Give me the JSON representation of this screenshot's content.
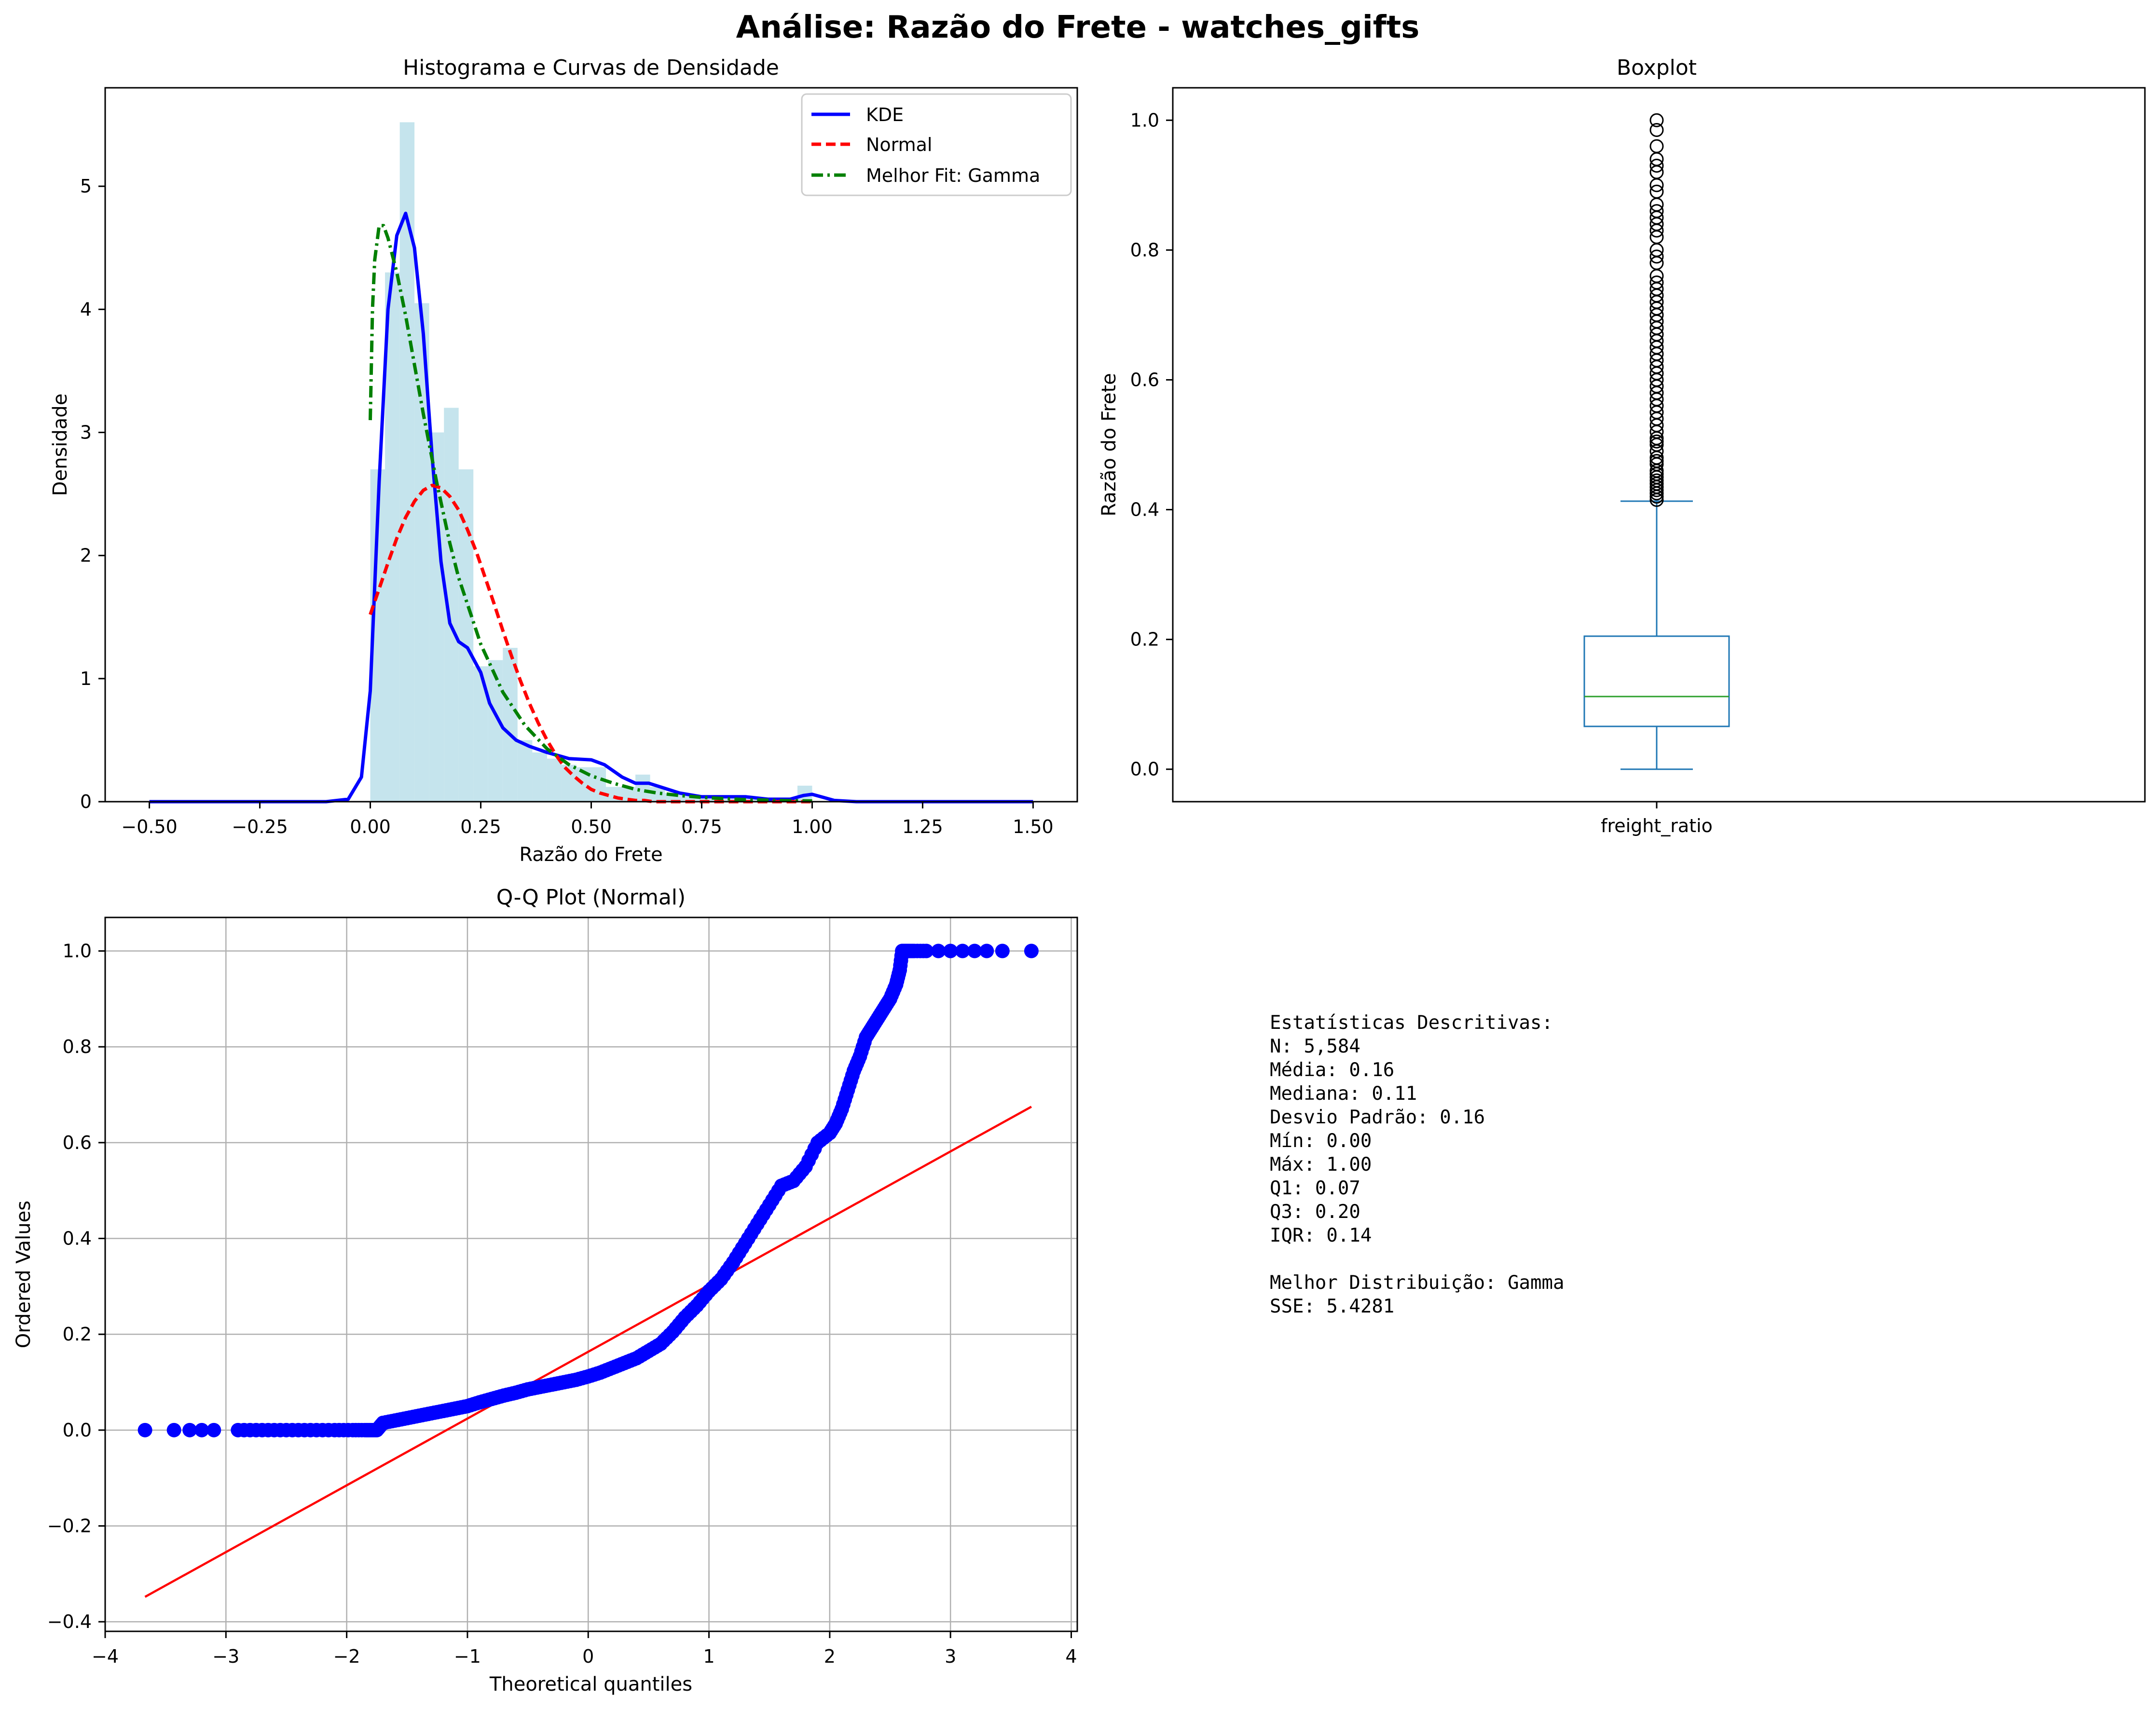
{
  "figure": {
    "title": "Análise: Razão do Frete - watches_gifts"
  },
  "colors": {
    "hist": "#add8e6",
    "kde": "#0000ff",
    "normal": "#ff0000",
    "gamma": "#008000",
    "box": "#1f77b4",
    "median": "#2ca02c",
    "qq_points": "#0000ff",
    "qq_line": "#ff0000",
    "grid": "#b0b0b0"
  },
  "chart_data": [
    {
      "id": "histogram",
      "type": "area",
      "title": "Histograma e Curvas de Densidade",
      "xlabel": "Razão do Frete",
      "ylabel": "Densidade",
      "xlim": [
        -0.6,
        1.6
      ],
      "ylim": [
        0,
        5.8
      ],
      "xticks": [
        -0.5,
        -0.25,
        0.0,
        0.25,
        0.5,
        0.75,
        1.0,
        1.25,
        1.5
      ],
      "xtick_labels": [
        "−0.50",
        "−0.25",
        "0.00",
        "0.25",
        "0.50",
        "0.75",
        "1.00",
        "1.25",
        "1.50"
      ],
      "yticks": [
        0,
        1,
        2,
        3,
        4,
        5
      ],
      "ytick_labels": [
        "0",
        "1",
        "2",
        "3",
        "4",
        "5"
      ],
      "legend_position": "upper right",
      "histogram": {
        "bin_edges": [
          0.0,
          0.0333,
          0.0667,
          0.1,
          0.1333,
          0.1667,
          0.2,
          0.2333,
          0.2667,
          0.3,
          0.3333,
          0.3667,
          0.4,
          0.4333,
          0.4667,
          0.5,
          0.5333,
          0.5667,
          0.6,
          0.6333,
          0.6667,
          0.7,
          0.7333,
          0.7667,
          0.8,
          0.8333,
          0.8667,
          0.9,
          0.9333,
          0.9667,
          1.0
        ],
        "densities": [
          2.7,
          4.3,
          5.52,
          4.05,
          3.0,
          3.2,
          2.7,
          1.1,
          1.15,
          1.25,
          0.5,
          0.4,
          0.35,
          0.3,
          0.28,
          0.28,
          0.12,
          0.12,
          0.22,
          0.12,
          0.07,
          0.06,
          0.05,
          0.04,
          0.04,
          0.03,
          0.02,
          0.02,
          0.03,
          0.13
        ]
      },
      "series": [
        {
          "name": "KDE",
          "style": "solid",
          "x": [
            -0.5,
            -0.1,
            -0.05,
            -0.02,
            0.0,
            0.02,
            0.04,
            0.06,
            0.08,
            0.1,
            0.12,
            0.14,
            0.16,
            0.18,
            0.2,
            0.22,
            0.25,
            0.27,
            0.3,
            0.33,
            0.36,
            0.4,
            0.45,
            0.5,
            0.53,
            0.57,
            0.6,
            0.63,
            0.7,
            0.75,
            0.8,
            0.85,
            0.9,
            0.95,
            0.98,
            1.0,
            1.02,
            1.05,
            1.1,
            1.5
          ],
          "y": [
            0.0,
            0.0,
            0.02,
            0.2,
            0.9,
            2.6,
            4.0,
            4.6,
            4.78,
            4.5,
            3.8,
            2.8,
            1.95,
            1.45,
            1.3,
            1.25,
            1.05,
            0.8,
            0.6,
            0.5,
            0.45,
            0.4,
            0.35,
            0.34,
            0.3,
            0.2,
            0.15,
            0.15,
            0.07,
            0.04,
            0.04,
            0.04,
            0.02,
            0.02,
            0.05,
            0.06,
            0.04,
            0.01,
            0.0,
            0.0
          ]
        },
        {
          "name": "Normal",
          "style": "dashed",
          "x": [
            0.0,
            0.02,
            0.04,
            0.06,
            0.08,
            0.1,
            0.12,
            0.14,
            0.16,
            0.18,
            0.2,
            0.22,
            0.24,
            0.26,
            0.28,
            0.3,
            0.32,
            0.34,
            0.36,
            0.38,
            0.4,
            0.42,
            0.44,
            0.46,
            0.48,
            0.5,
            0.52,
            0.54,
            0.56,
            0.58,
            0.6,
            0.62,
            0.64,
            0.66,
            0.68,
            0.7,
            0.72,
            0.74,
            0.76,
            0.78,
            0.8,
            0.85,
            0.9,
            0.95,
            1.0
          ],
          "y": [
            1.52,
            1.73,
            1.94,
            2.14,
            2.31,
            2.44,
            2.53,
            2.57,
            2.55,
            2.48,
            2.37,
            2.21,
            2.03,
            1.82,
            1.61,
            1.39,
            1.18,
            0.98,
            0.8,
            0.64,
            0.5,
            0.38,
            0.28,
            0.21,
            0.15,
            0.1,
            0.07,
            0.05,
            0.03,
            0.02,
            0.01,
            0.01,
            0.0,
            0.0,
            0.0,
            0.0,
            0.0,
            0.0,
            0.0,
            0.0,
            0.0,
            0.0,
            0.0,
            0.0,
            0.0
          ]
        },
        {
          "name": "Melhor Fit: Gamma",
          "style": "dashdot",
          "x": [
            0.0,
            0.005,
            0.01,
            0.02,
            0.03,
            0.04,
            0.06,
            0.08,
            0.1,
            0.12,
            0.15,
            0.18,
            0.2,
            0.25,
            0.3,
            0.35,
            0.4,
            0.45,
            0.5,
            0.55,
            0.6,
            0.65,
            0.7,
            0.75,
            0.8,
            0.85,
            0.9,
            0.95,
            1.0
          ],
          "y": [
            3.1,
            4.0,
            4.4,
            4.68,
            4.68,
            4.58,
            4.3,
            3.95,
            3.55,
            3.15,
            2.6,
            2.1,
            1.82,
            1.28,
            0.89,
            0.62,
            0.43,
            0.3,
            0.21,
            0.15,
            0.1,
            0.07,
            0.05,
            0.035,
            0.025,
            0.017,
            0.012,
            0.008,
            0.006
          ]
        }
      ]
    },
    {
      "id": "boxplot",
      "type": "box",
      "title": "Boxplot",
      "xlabel": "",
      "ylabel": "Razão do Frete",
      "category": "freight_ratio",
      "ylim": [
        -0.05,
        1.05
      ],
      "yticks": [
        0.0,
        0.2,
        0.4,
        0.6,
        0.8,
        1.0
      ],
      "ytick_labels": [
        "0.0",
        "0.2",
        "0.4",
        "0.6",
        "0.8",
        "1.0"
      ],
      "whisker_low": 0.0,
      "q1": 0.066,
      "median": 0.112,
      "q3": 0.205,
      "whisker_high": 0.413,
      "outliers": [
        0.415,
        0.42,
        0.425,
        0.43,
        0.435,
        0.44,
        0.445,
        0.45,
        0.455,
        0.46,
        0.47,
        0.475,
        0.48,
        0.49,
        0.5,
        0.505,
        0.51,
        0.52,
        0.53,
        0.54,
        0.55,
        0.56,
        0.57,
        0.58,
        0.59,
        0.6,
        0.61,
        0.62,
        0.63,
        0.64,
        0.65,
        0.66,
        0.67,
        0.68,
        0.69,
        0.7,
        0.71,
        0.72,
        0.73,
        0.74,
        0.75,
        0.76,
        0.78,
        0.79,
        0.8,
        0.82,
        0.83,
        0.84,
        0.85,
        0.86,
        0.87,
        0.89,
        0.9,
        0.92,
        0.93,
        0.94,
        0.96,
        0.985,
        1.0
      ]
    },
    {
      "id": "qqplot",
      "type": "scatter",
      "title": "Q-Q Plot (Normal)",
      "xlabel": "Theoretical quantiles",
      "ylabel": "Ordered Values",
      "xlim": [
        -4.0,
        4.05
      ],
      "ylim": [
        -0.42,
        1.07
      ],
      "xticks": [
        -4,
        -3,
        -2,
        -1,
        0,
        1,
        2,
        3,
        4
      ],
      "xtick_labels": [
        "−4",
        "−3",
        "−2",
        "−1",
        "0",
        "1",
        "2",
        "3",
        "4"
      ],
      "yticks": [
        -0.4,
        -0.2,
        0.0,
        0.2,
        0.4,
        0.6,
        0.8,
        1.0
      ],
      "ytick_labels": [
        "−0.4",
        "−0.2",
        "0.0",
        "0.2",
        "0.4",
        "0.6",
        "0.8",
        "1.0"
      ],
      "grid": true,
      "points": {
        "x": [
          -3.67,
          -3.43,
          -3.3,
          -3.2,
          -3.1,
          -2.9,
          -2.7,
          -2.5,
          -2.3,
          -2.1,
          -1.95,
          -1.85,
          -1.8,
          -1.75,
          -1.7,
          -1.6,
          -1.5,
          -1.4,
          -1.3,
          -1.2,
          -1.1,
          -1.0,
          -0.9,
          -0.8,
          -0.7,
          -0.6,
          -0.5,
          -0.4,
          -0.3,
          -0.2,
          -0.1,
          0.0,
          0.1,
          0.2,
          0.3,
          0.4,
          0.5,
          0.6,
          0.7,
          0.8,
          0.9,
          1.0,
          1.1,
          1.2,
          1.3,
          1.4,
          1.5,
          1.6,
          1.7,
          1.8,
          1.9,
          2.0,
          2.05,
          2.1,
          2.15,
          2.2,
          2.25,
          2.3,
          2.35,
          2.4,
          2.45,
          2.5,
          2.55,
          2.58,
          2.6,
          2.62,
          2.65,
          2.7,
          2.8,
          2.9,
          3.0,
          3.1,
          3.2,
          3.3,
          3.43,
          3.67
        ],
        "y": [
          0.0,
          0.0,
          0.0,
          0.0,
          0.0,
          0.0,
          0.0,
          0.0,
          0.0,
          0.0,
          0.0,
          0.0,
          0.0,
          0.0,
          0.015,
          0.02,
          0.025,
          0.03,
          0.035,
          0.04,
          0.045,
          0.05,
          0.058,
          0.065,
          0.072,
          0.078,
          0.085,
          0.09,
          0.095,
          0.1,
          0.105,
          0.112,
          0.12,
          0.13,
          0.14,
          0.15,
          0.165,
          0.18,
          0.205,
          0.235,
          0.26,
          0.29,
          0.315,
          0.35,
          0.39,
          0.43,
          0.47,
          0.51,
          0.52,
          0.55,
          0.6,
          0.62,
          0.64,
          0.67,
          0.71,
          0.75,
          0.78,
          0.82,
          0.84,
          0.86,
          0.88,
          0.9,
          0.93,
          0.96,
          1.0,
          1.0,
          1.0,
          1.0,
          1.0,
          1.0,
          1.0,
          1.0,
          1.0,
          1.0,
          1.0,
          1.0
        ]
      },
      "fit_line": {
        "x": [
          -3.67,
          3.67
        ],
        "y": [
          -0.348,
          0.675
        ]
      }
    }
  ],
  "stats_panel": {
    "lines": [
      "Estatísticas Descritivas:",
      "N: 5,584",
      "Média: 0.16",
      "Mediana: 0.11",
      "Desvio Padrão: 0.16",
      "Mín: 0.00",
      "Máx: 1.00",
      "Q1: 0.07",
      "Q3: 0.20",
      "IQR: 0.14",
      "",
      "Melhor Distribuição: Gamma",
      "SSE: 5.4281"
    ]
  }
}
